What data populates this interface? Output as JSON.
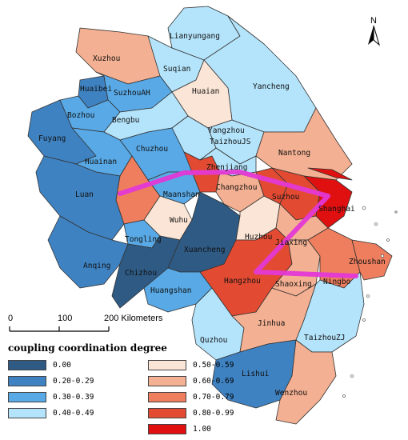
{
  "colors": {
    "c000": "#2e5a84",
    "c020": "#3f82c2",
    "c030": "#58a9e6",
    "c040": "#b4e4fb",
    "c050": "#fbe5d6",
    "c060": "#f4b092",
    "c070": "#ee7e5e",
    "c080": "#e34a32",
    "c100": "#e01010",
    "path": "#e338d6",
    "border": "#333333"
  },
  "north": {
    "letter": "N",
    "icon": "north-arrow-icon"
  },
  "scale": {
    "labels": [
      "0",
      "100",
      "200 Kilometers"
    ]
  },
  "legend": {
    "title": "coupling coordination degree",
    "items": [
      {
        "label": "0.00",
        "color": "#2e5a84"
      },
      {
        "label": "0.20-0.29",
        "color": "#3f82c2"
      },
      {
        "label": "0.30-0.39",
        "color": "#58a9e6"
      },
      {
        "label": "0.40-0.49",
        "color": "#b4e4fb"
      },
      {
        "label": "0.50-0.59",
        "color": "#fbe5d6"
      },
      {
        "label": "0.60-0.69",
        "color": "#f4b092"
      },
      {
        "label": "0.70-0.79",
        "color": "#ee7e5e"
      },
      {
        "label": "0.80-0.99",
        "color": "#e34a32"
      },
      {
        "label": "1.00",
        "color": "#e01010"
      }
    ]
  },
  "cities": {
    "lianyungang": "Lianyungang",
    "xuzhou": "Xuzhou",
    "suqian": "Suqian",
    "huaibei": "Huaibei",
    "suzhouah": "SuzhouAH",
    "huaian": "Huaian",
    "yancheng": "Yancheng",
    "bozhou": "Bozhou",
    "bengbu": "Bengbu",
    "yangzhou": "Yangzhou",
    "taizhoujs": "TaizhouJS",
    "fuyang": "Fuyang",
    "chuzhou": "Chuzhou",
    "nantong": "Nantong",
    "huainan": "Huainan",
    "zhenjiang": "Zhenjiang",
    "changzhou": "Changzhou",
    "luan": "Luan",
    "maanshan": "Maanshan",
    "suzhou": "Suzhou",
    "shanghai": "Shanghai",
    "wuhu": "Wuhu",
    "huzhou": "Huzhou",
    "jiaxing": "Jiaxing",
    "tongling": "Tongling",
    "xuancheng": "Xuancheng",
    "zhoushan": "Zhoushan",
    "anqing": "Anqing",
    "chizhou": "Chizhou",
    "hangzhou": "Hangzhou",
    "shaoxing": "Shaoxing",
    "ningbo": "Ningbo",
    "huangshan": "Huangshan",
    "jinhua": "Jinhua",
    "quzhou": "Quzhou",
    "taizhouzj": "TaizhouZJ",
    "lishui": "Lishui",
    "wenzhou": "Wenzhou"
  }
}
